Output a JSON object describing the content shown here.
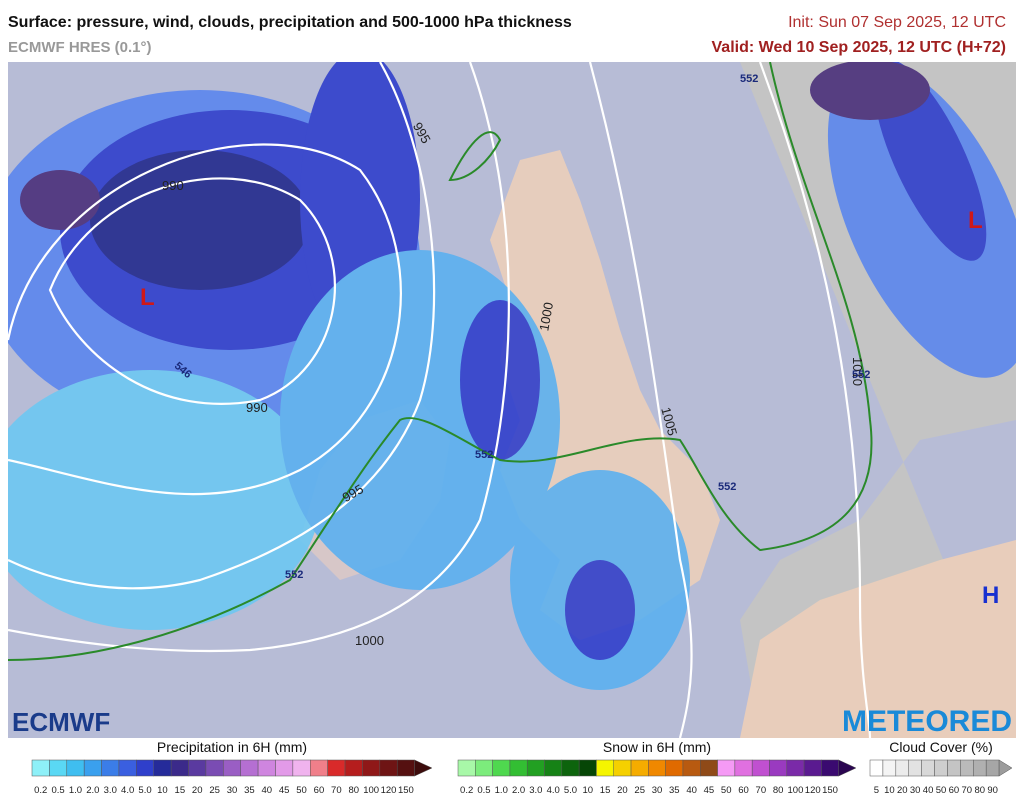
{
  "header": {
    "title": "Surface: pressure, wind, clouds, precipitation and 500-1000 hPa thickness",
    "model": "ECMWF HRES (0.1°)",
    "init": "Init: Sun 07 Sep 2025, 12 UTC",
    "valid": "Valid: Wed 10 Sep 2025, 12 UTC (H+72)"
  },
  "map": {
    "isobar_labels": [
      "990",
      "995",
      "990",
      "995",
      "1000",
      "1000",
      "1005",
      "1010"
    ],
    "thickness_labels": [
      "552",
      "552",
      "552",
      "552",
      "552",
      "546"
    ],
    "pressure_centres": [
      "L",
      "L",
      "H"
    ]
  },
  "logos": {
    "left": "ECMWF",
    "right": "METEORED"
  },
  "legends": [
    {
      "title": "Precipitation in 6H (mm)",
      "labels": [
        "0.2",
        "0.5",
        "1.0",
        "2.0",
        "3.0",
        "4.0",
        "5.0",
        "10",
        "15",
        "20",
        "25",
        "30",
        "35",
        "40",
        "45",
        "50",
        "60",
        "70",
        "80",
        "100",
        "120",
        "150"
      ]
    },
    {
      "title": "Snow in 6H (mm)",
      "labels": [
        "0.2",
        "0.5",
        "1.0",
        "2.0",
        "3.0",
        "4.0",
        "5.0",
        "10",
        "15",
        "20",
        "25",
        "30",
        "35",
        "40",
        "45",
        "50",
        "60",
        "70",
        "80",
        "100",
        "120",
        "150"
      ]
    },
    {
      "title": "Cloud Cover (%)",
      "labels": [
        "5",
        "10",
        "20",
        "30",
        "40",
        "50",
        "60",
        "70",
        "80",
        "90"
      ]
    }
  ]
}
